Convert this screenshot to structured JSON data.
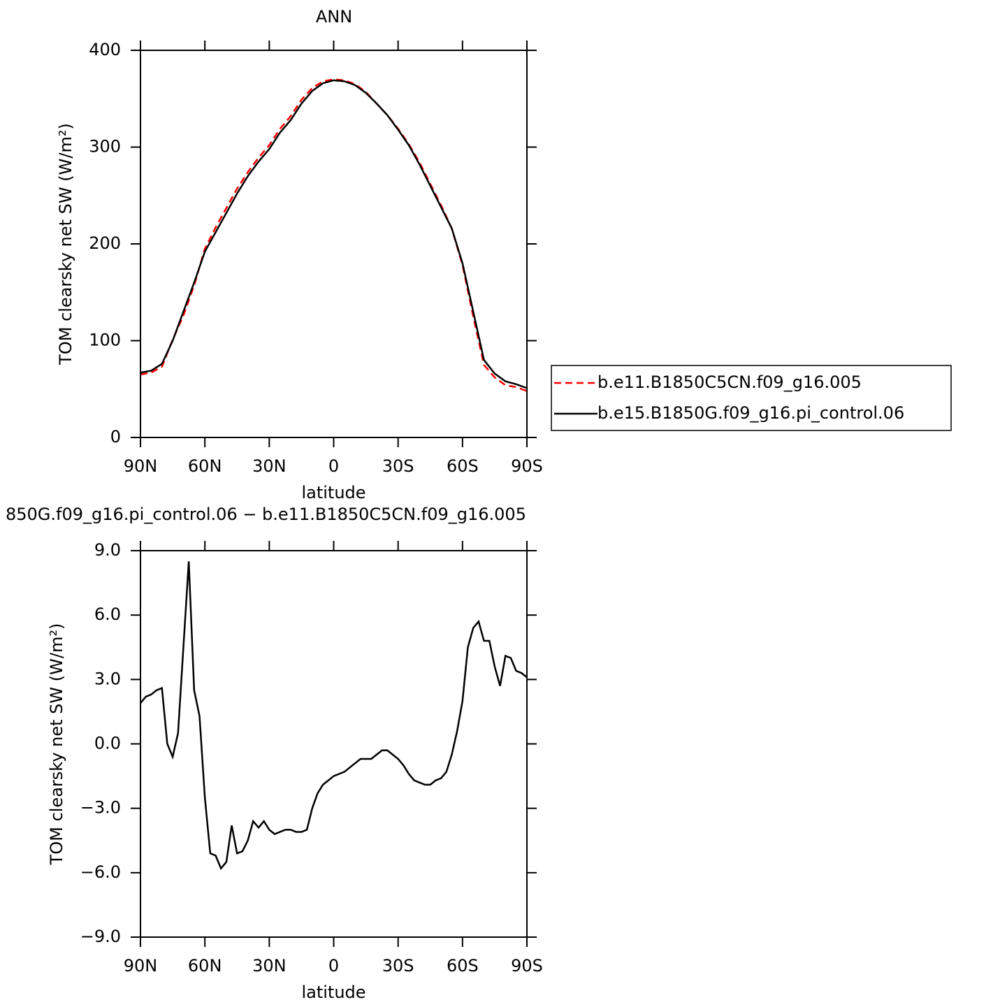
{
  "chart_data": [
    {
      "type": "line",
      "title": "ANN",
      "xlabel": "latitude",
      "ylabel": "TOM clearsky net SW (W/m²)",
      "x": [
        90,
        85,
        80,
        75,
        70,
        65,
        60,
        55,
        50,
        45,
        40,
        35,
        30,
        25,
        20,
        15,
        10,
        5,
        0,
        -5,
        -10,
        -15,
        -20,
        -25,
        -30,
        -35,
        -40,
        -45,
        -50,
        -55,
        -60,
        -65,
        -70,
        -75,
        -80,
        -85,
        -90
      ],
      "series": [
        {
          "name": "b.e11.B1850C5CN.f09_g16.005",
          "color": "#ff0000",
          "dash": true,
          "values": [
            65,
            67,
            73,
            101,
            126,
            157,
            195,
            217,
            237,
            257,
            274,
            289,
            302,
            319,
            332,
            349,
            361,
            368,
            370,
            369,
            365,
            357,
            345,
            333,
            319,
            303,
            284,
            262,
            240,
            216,
            178,
            125,
            75,
            62,
            54,
            52,
            48
          ]
        },
        {
          "name": "b.e15.B1850G.f09_g16.pi_control.06",
          "color": "#000000",
          "dash": false,
          "values": [
            67,
            69,
            76,
            100,
            130,
            160,
            192,
            212,
            232,
            252,
            270,
            285,
            298,
            315,
            328,
            345,
            358,
            366,
            369,
            368,
            364,
            356,
            345,
            333,
            318,
            302,
            282,
            260,
            238,
            216,
            180,
            130,
            80,
            66,
            58,
            55,
            51
          ]
        }
      ],
      "xlim": [
        90,
        -90
      ],
      "xticks": [
        {
          "value": 90,
          "label": "90N"
        },
        {
          "value": 60,
          "label": "60N"
        },
        {
          "value": 30,
          "label": "30N"
        },
        0,
        {
          "value": -30,
          "label": "30S"
        },
        {
          "value": -60,
          "label": "60S"
        },
        {
          "value": -90,
          "label": "90S"
        }
      ],
      "ylim": [
        0,
        400
      ],
      "yticks": [
        0,
        100,
        200,
        300,
        400
      ],
      "legend": "right"
    },
    {
      "type": "line",
      "title": "850G.f09_g16.pi_control.06 − b.e11.B1850C5CN.f09_g16.005",
      "xlabel": "latitude",
      "ylabel": "TOM clearsky net SW (W/m²)",
      "x": [
        90,
        87.5,
        85,
        82.5,
        80,
        77.5,
        75,
        72.5,
        70,
        67.5,
        65,
        62.5,
        60,
        57.5,
        55,
        52.5,
        50,
        47.5,
        45,
        42.5,
        40,
        37.5,
        35,
        32.5,
        30,
        27.5,
        25,
        22.5,
        20,
        17.5,
        15,
        12.5,
        10,
        7.5,
        5,
        2.5,
        0,
        -2.5,
        -5,
        -7.5,
        -10,
        -12.5,
        -15,
        -17.5,
        -20,
        -22.5,
        -25,
        -27.5,
        -30,
        -32.5,
        -35,
        -37.5,
        -40,
        -42.5,
        -45,
        -47.5,
        -50,
        -52.5,
        -55,
        -57.5,
        -60,
        -62.5,
        -65,
        -67.5,
        -70,
        -72.5,
        -75,
        -77.5,
        -80,
        -82.5,
        -85,
        -87.5,
        -90
      ],
      "series": [
        {
          "color": "#000000",
          "dash": false,
          "values": [
            1.9,
            2.2,
            2.3,
            2.5,
            2.6,
            0,
            -0.6,
            0.5,
            4.5,
            8.5,
            2.5,
            1.3,
            -2.5,
            -5.1,
            -5.2,
            -5.8,
            -5.5,
            -3.8,
            -5.1,
            -5.0,
            -4.5,
            -3.6,
            -3.9,
            -3.6,
            -4.0,
            -4.2,
            -4.1,
            -4.0,
            -4.0,
            -4.1,
            -4.1,
            -4.0,
            -3.0,
            -2.3,
            -1.9,
            -1.7,
            -1.5,
            -1.4,
            -1.3,
            -1.1,
            -0.9,
            -0.7,
            -0.7,
            -0.7,
            -0.5,
            -0.3,
            -0.3,
            -0.5,
            -0.7,
            -1.0,
            -1.4,
            -1.7,
            -1.8,
            -1.9,
            -1.9,
            -1.7,
            -1.6,
            -1.3,
            -0.5,
            0.6,
            2.0,
            4.5,
            5.4,
            5.7,
            4.8,
            4.8,
            3.6,
            2.7,
            4.1,
            4.0,
            3.4,
            3.3,
            3.1
          ]
        }
      ],
      "xlim": [
        90,
        -90
      ],
      "xticks": [
        {
          "value": 90,
          "label": "90N"
        },
        {
          "value": 60,
          "label": "60N"
        },
        {
          "value": 30,
          "label": "30N"
        },
        0,
        {
          "value": -30,
          "label": "30S"
        },
        {
          "value": -60,
          "label": "60S"
        },
        {
          "value": -90,
          "label": "90S"
        }
      ],
      "ylim": [
        -9,
        9
      ],
      "yticks": [
        {
          "value": -9,
          "label": "−9.0"
        },
        {
          "value": -6,
          "label": "−6.0"
        },
        {
          "value": -3,
          "label": "−3.0"
        },
        {
          "value": 0,
          "label": "0.0"
        },
        {
          "value": 3,
          "label": "3.0"
        },
        {
          "value": 6,
          "label": "6.0"
        },
        {
          "value": 9,
          "label": "9.0"
        }
      ]
    }
  ]
}
